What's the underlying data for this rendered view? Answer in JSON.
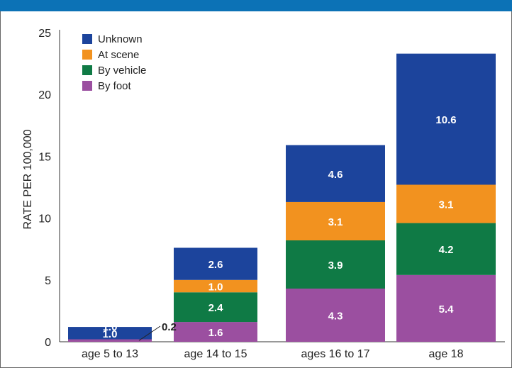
{
  "chart_data": {
    "type": "bar",
    "stacked": true,
    "categories": [
      "age 5 to 13",
      "age 14 to 15",
      "ages 16 to 17",
      "age 18"
    ],
    "series": [
      {
        "name": "By foot",
        "color": "#9b4fa0",
        "values": [
          0.2,
          1.6,
          4.3,
          5.4
        ]
      },
      {
        "name": "By vehicle",
        "color": "#0f7a45",
        "values": [
          0,
          2.4,
          3.9,
          4.2
        ]
      },
      {
        "name": "At scene",
        "color": "#f2921f",
        "values": [
          0,
          1.0,
          3.1,
          3.1
        ]
      },
      {
        "name": "Unknown",
        "color": "#1c449c",
        "values": [
          1.0,
          2.6,
          4.6,
          10.6
        ]
      }
    ],
    "segment_labels": [
      [
        "0.2",
        "",
        "",
        "1.0"
      ],
      [
        "1.6",
        "2.4",
        "1.0",
        "2.6"
      ],
      [
        "4.3",
        "3.9",
        "3.1",
        "4.6"
      ],
      [
        "5.4",
        "4.2",
        "3.1",
        "10.6"
      ]
    ],
    "legend_order": [
      "Unknown",
      "At scene",
      "By vehicle",
      "By foot"
    ],
    "legend_position": "top-left",
    "ylabel": "RATE PER 100,000",
    "xlabel": "",
    "ylim": [
      0,
      25
    ],
    "yticks": [
      "0",
      "5",
      "10",
      "15",
      "20",
      "25"
    ],
    "grid": false,
    "header_color": "#0c72b6"
  }
}
